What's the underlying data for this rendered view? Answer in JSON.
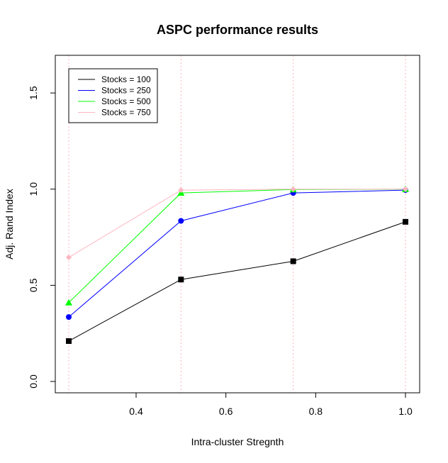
{
  "chart_data": {
    "type": "line",
    "title": "ASPC performance results",
    "xlabel": "Intra-cluster Stregnth",
    "ylabel": "Adj. Rand Index",
    "x": [
      0.25,
      0.5,
      0.75,
      1.0
    ],
    "xlim": [
      0.25,
      1.0
    ],
    "ylim": [
      0.0,
      1.6
    ],
    "xticks": [
      0.4,
      0.6,
      0.8,
      1.0
    ],
    "xtick_labels": [
      "0.4",
      "0.6",
      "0.8",
      "1.0"
    ],
    "yticks": [
      0.0,
      0.5,
      1.0,
      1.5
    ],
    "ytick_labels": [
      "0.0",
      "0.5",
      "1.0",
      "1.5"
    ],
    "vlines": [
      0.25,
      0.5,
      0.75,
      1.0
    ],
    "vline_color": "#ffb6c1",
    "legend_position": "top-left",
    "series": [
      {
        "name": "Stocks = 100",
        "color": "#000000",
        "marker": "square",
        "values": [
          0.21,
          0.53,
          0.625,
          0.83
        ]
      },
      {
        "name": "Stocks = 250",
        "color": "#0000ff",
        "marker": "circle",
        "values": [
          0.335,
          0.835,
          0.98,
          0.995
        ]
      },
      {
        "name": "Stocks = 500",
        "color": "#00ff00",
        "marker": "triangle",
        "values": [
          0.41,
          0.98,
          0.998,
          1.0
        ]
      },
      {
        "name": "Stocks = 750",
        "color": "#ffb6c1",
        "marker": "diamond",
        "values": [
          0.645,
          0.995,
          1.0,
          1.0
        ]
      }
    ]
  }
}
